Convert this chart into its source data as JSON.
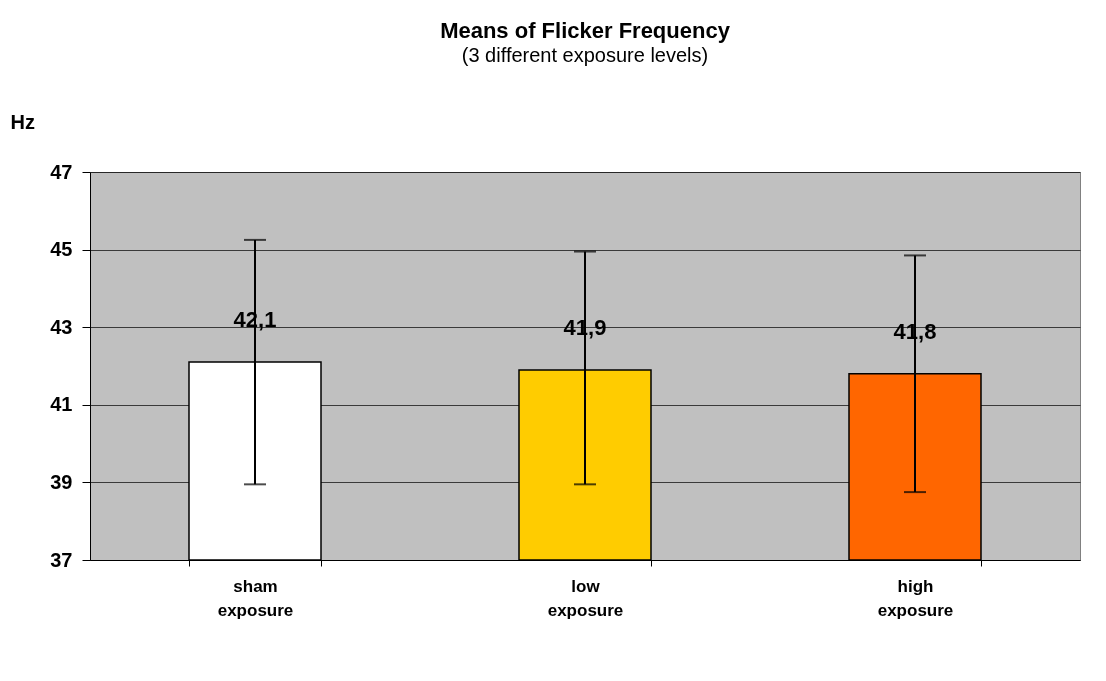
{
  "chart_data": {
    "type": "bar",
    "title": "Means of Flicker Frequency",
    "subtitle": "(3 different exposure levels)",
    "ylabel": "Hz",
    "categories": [
      "sham\nexposure",
      "low\nexposure",
      "high\nexposure"
    ],
    "values": [
      42.1,
      41.9,
      41.8
    ],
    "colors": [
      "#ffffff",
      "#ffcc00",
      "#ff6600"
    ],
    "errors": [
      [
        38.95,
        45.25
      ],
      [
        38.95,
        44.95
      ],
      [
        38.75,
        44.85
      ]
    ],
    "value_labels": [
      "42,1",
      "41,9",
      "41,8"
    ],
    "ylim": [
      37,
      47
    ],
    "yticks": [
      37,
      39,
      41,
      43,
      45,
      47
    ],
    "grid": "y",
    "legend": false
  }
}
